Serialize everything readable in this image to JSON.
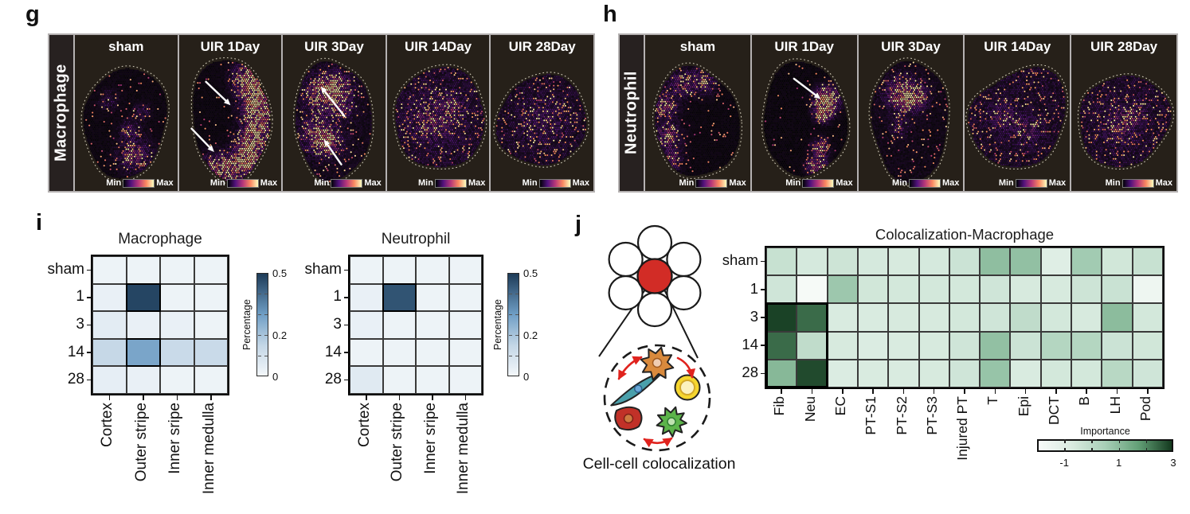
{
  "figure_labels": {
    "g": "g",
    "h": "h",
    "i": "i",
    "j": "j"
  },
  "panel_g": {
    "row_label": "Macrophage",
    "column_titles": [
      "sham",
      "UIR 1Day",
      "UIR 3Day",
      "UIR 14Day",
      "UIR 28Day"
    ],
    "scale_min_label": "Min",
    "scale_max_label": "Max",
    "arrow_annotations": {
      "UIR 1Day": 2,
      "UIR 3Day": 2
    }
  },
  "panel_h": {
    "row_label": "Neutrophil",
    "column_titles": [
      "sham",
      "UIR 1Day",
      "UIR 3Day",
      "UIR 14Day",
      "UIR 28Day"
    ],
    "scale_min_label": "Min",
    "scale_max_label": "Max",
    "arrow_annotations": {
      "UIR 1Day": 1
    }
  },
  "panel_j": {
    "diagram_caption": "Cell-cell colocalization",
    "diagram_colors": {
      "center_spot": "#d22c26",
      "neighbor_spot": "#ffffff",
      "orange_cell": "#d98a3d",
      "teal_cell": "#4aa0ab",
      "yellow_cell": "#f6d62e",
      "red_cell": "#c13128",
      "green_cell": "#5cb44a",
      "interaction_arrow": "#e0231e"
    }
  },
  "tissue_colormap": [
    "#000004",
    "#51127c",
    "#b73779",
    "#fb8861",
    "#fcfdbf"
  ],
  "chart_data": [
    {
      "id": "macrophage_region_percentage",
      "type": "heatmap",
      "title": "Macrophage",
      "rows": [
        "sham",
        "1",
        "3",
        "14",
        "28"
      ],
      "columns": [
        "Cortex",
        "Outer stripe",
        "Inner sripe",
        "Inner medulla"
      ],
      "values": [
        [
          0.02,
          0.02,
          0.02,
          0.02
        ],
        [
          0.03,
          0.48,
          0.02,
          0.02
        ],
        [
          0.05,
          0.03,
          0.03,
          0.02
        ],
        [
          0.14,
          0.28,
          0.13,
          0.13
        ],
        [
          0.04,
          0.03,
          0.02,
          0.02
        ]
      ],
      "value_range": [
        0,
        0.5
      ],
      "highlighted_cells": [
        [
          1,
          1
        ],
        [
          3,
          1
        ]
      ],
      "colormap": [
        [
          0,
          "#f3f7fa"
        ],
        [
          0.3,
          "#c3d6e6"
        ],
        [
          0.6,
          "#6f9ec5"
        ],
        [
          1,
          "#1d3b58"
        ]
      ],
      "colorbar": {
        "label": "Percentage",
        "ticks": [
          {
            "label": "0",
            "pos": 0
          },
          {
            "label": "0.2",
            "pos": 0.4
          },
          {
            "label": "0.5",
            "pos": 1
          }
        ],
        "minor_ticks": [
          0.2,
          0.4,
          0.6,
          0.8
        ]
      }
    },
    {
      "id": "neutrophil_region_percentage",
      "type": "heatmap",
      "title": "Neutrophil",
      "rows": [
        "sham",
        "1",
        "3",
        "14",
        "28"
      ],
      "columns": [
        "Cortex",
        "Outer stripe",
        "Inner sripe",
        "Inner medulla"
      ],
      "values": [
        [
          0.02,
          0.02,
          0.02,
          0.02
        ],
        [
          0.03,
          0.45,
          0.02,
          0.02
        ],
        [
          0.03,
          0.02,
          0.02,
          0.02
        ],
        [
          0.02,
          0.02,
          0.02,
          0.02
        ],
        [
          0.06,
          0.02,
          0.02,
          0.02
        ]
      ],
      "value_range": [
        0,
        0.5
      ],
      "highlighted_cells": [
        [
          1,
          1
        ]
      ],
      "colormap": [
        [
          0,
          "#f3f7fa"
        ],
        [
          0.3,
          "#c3d6e6"
        ],
        [
          0.6,
          "#6f9ec5"
        ],
        [
          1,
          "#1d3b58"
        ]
      ],
      "colorbar": {
        "label": "Percentage",
        "ticks": [
          {
            "label": "0",
            "pos": 0
          },
          {
            "label": "0.2",
            "pos": 0.4
          },
          {
            "label": "0.5",
            "pos": 1
          }
        ],
        "minor_ticks": [
          0.2,
          0.4,
          0.6,
          0.8
        ]
      }
    },
    {
      "id": "colocalization_macrophage",
      "type": "heatmap",
      "title": "Colocalization-Macrophage",
      "rows": [
        "sham",
        "1",
        "3",
        "14",
        "28"
      ],
      "columns": [
        "Fib",
        "Neu",
        "EC",
        "PT-S1",
        "PT-S2",
        "PT-S3",
        "Injured PT",
        "T",
        "Epi",
        "DCT",
        "B",
        "LH",
        "Pod"
      ],
      "values": [
        [
          -0.3,
          -0.65,
          -0.45,
          -0.65,
          -0.7,
          -0.65,
          -0.4,
          0.95,
          0.9,
          -1.0,
          0.6,
          -0.55,
          -0.3
        ],
        [
          -0.5,
          -1.9,
          0.7,
          -0.55,
          -0.6,
          -0.6,
          -0.6,
          -0.5,
          -0.7,
          -0.7,
          -0.45,
          -0.35,
          -1.6
        ],
        [
          2.9,
          2.4,
          -0.75,
          -0.75,
          -0.7,
          -0.7,
          -0.6,
          -0.5,
          -0.1,
          -0.6,
          -0.7,
          1.0,
          -0.6
        ],
        [
          2.4,
          -0.1,
          -0.7,
          -0.85,
          -0.75,
          -0.7,
          -0.5,
          0.9,
          -0.4,
          0.2,
          0.2,
          -0.4,
          -0.55
        ],
        [
          1.1,
          2.8,
          -0.85,
          -0.75,
          -0.75,
          -0.7,
          -0.5,
          0.8,
          -0.75,
          -0.6,
          -0.6,
          0.1,
          -0.5
        ]
      ],
      "value_range": [
        -2,
        3
      ],
      "highlighted_block": {
        "row_start": 2,
        "row_end": 4,
        "col_start": 0,
        "col_end": 1
      },
      "colormap": [
        [
          0,
          "#f8fbf9"
        ],
        [
          0.25,
          "#d9ebe0"
        ],
        [
          0.5,
          "#a8cfb7"
        ],
        [
          0.75,
          "#63a077"
        ],
        [
          1,
          "#143a1f"
        ]
      ],
      "colorbar": {
        "label": "Importance",
        "ticks": [
          {
            "label": "-1",
            "pos": 0.2
          },
          {
            "label": "1",
            "pos": 0.6
          },
          {
            "label": "3",
            "pos": 1
          }
        ],
        "minor_ticks": [
          0.2,
          0.4,
          0.6,
          0.8
        ]
      }
    }
  ]
}
